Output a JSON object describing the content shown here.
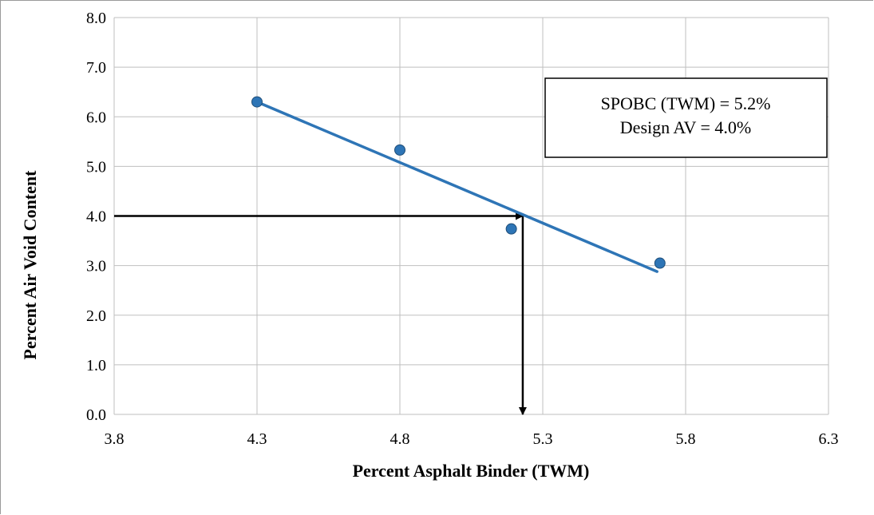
{
  "chart_data": {
    "type": "scatter",
    "xlabel": "Percent Asphalt Binder (TWM)",
    "ylabel": "Percent Air Void Content",
    "xlim": [
      3.8,
      6.3
    ],
    "ylim": [
      0.0,
      8.0
    ],
    "x_ticks": [
      "3.8",
      "4.3",
      "4.8",
      "5.3",
      "5.8",
      "6.3"
    ],
    "y_ticks": [
      "0.0",
      "1.0",
      "2.0",
      "3.0",
      "4.0",
      "5.0",
      "6.0",
      "7.0",
      "8.0"
    ],
    "grid": true,
    "series": [
      {
        "x": [
          4.3,
          4.8,
          5.19,
          5.71
        ],
        "y": [
          6.3,
          5.33,
          3.74,
          3.05
        ],
        "color": "#2e75b6"
      }
    ],
    "trendline": {
      "x": [
        4.3,
        5.7
      ],
      "y": [
        6.3,
        2.88
      ],
      "color": "#2e75b6"
    },
    "reference_arrows": {
      "horizontal": {
        "from_x": 3.8,
        "to_x": 5.23,
        "y": 4.0
      },
      "vertical": {
        "x": 5.23,
        "from_y": 4.0,
        "to_y": 0.0
      },
      "color": "#000000"
    },
    "annotation": {
      "lines": [
        "SPOBC (TWM) = 5.2%",
        "Design AV = 4.0%"
      ]
    }
  }
}
